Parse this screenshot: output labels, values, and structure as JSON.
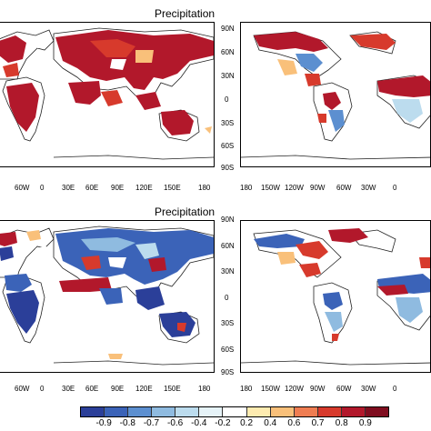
{
  "panels": {
    "top": {
      "title": "Precipitation"
    },
    "bottom": {
      "title": "Precipitation"
    }
  },
  "lat_labels": [
    "90N",
    "60N",
    "30N",
    "0",
    "30S",
    "60S",
    "90S"
  ],
  "left_lon_labels": [
    "60W",
    "0",
    "30E",
    "60E",
    "90E",
    "120E",
    "150E",
    "180"
  ],
  "right_lon_labels": [
    "180",
    "150W",
    "120W",
    "90W",
    "60W",
    "30W",
    "0"
  ],
  "colorbar": {
    "labels": [
      "-0.9",
      "-0.8",
      "-0.7",
      "-0.6",
      "-0.4",
      "-0.2",
      "0.2",
      "0.4",
      "0.6",
      "0.7",
      "0.8",
      "0.9"
    ],
    "colors": [
      "#2b3f99",
      "#3b63b8",
      "#5c8fd0",
      "#8fbbe0",
      "#bcdcee",
      "#e6f3f8",
      "#ffffff",
      "#fdebb0",
      "#f9c07a",
      "#ef7d52",
      "#d73a2c",
      "#b2182b",
      "#7f0d1f"
    ]
  },
  "colors": {
    "strong_pos": "#b2182b",
    "pos": "#d73a2c",
    "weak_pos": "#f9c07a",
    "strong_neg": "#2b3f99",
    "neg": "#5c8fd0",
    "weak_neg": "#bcdcee",
    "land_fill": "#e6f3f8",
    "coast": "#222222"
  }
}
